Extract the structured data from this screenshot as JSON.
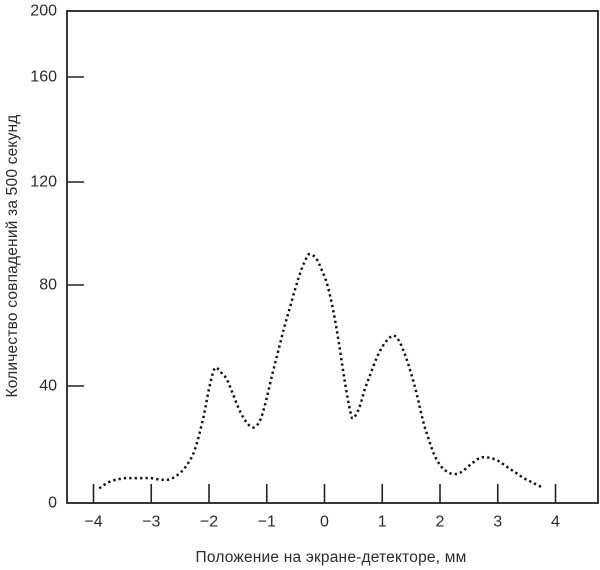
{
  "chart_data": {
    "type": "line",
    "line_style": "dotted",
    "title": "",
    "xlabel": "Положение на экране-детекторе, мм",
    "ylabel": "Количество совпадений за 500 секунд",
    "xlim": [
      -4.45,
      4.75
    ],
    "ylim": [
      0,
      200
    ],
    "grid": false,
    "legend_position": "none",
    "x_ticks": [
      -4,
      -3,
      -2,
      -1,
      0,
      1,
      2,
      3,
      4
    ],
    "x_tick_labels": [
      "−4",
      "−3",
      "−2",
      "−1",
      "0",
      "1",
      "2",
      "3",
      "4"
    ],
    "y_ticks": [
      0,
      40,
      80,
      120,
      160,
      200
    ],
    "y_tick_labels": [
      "0",
      "40",
      "80",
      "120",
      "160",
      "200"
    ],
    "colors": {
      "curve": "#111111",
      "axis": "#222222",
      "text": "#2b2b2b"
    },
    "series": [
      {
        "name": "coincidence counts per 500 s",
        "points": [
          [
            -3.9,
            5
          ],
          [
            -3.75,
            7
          ],
          [
            -3.6,
            8
          ],
          [
            -3.45,
            8.5
          ],
          [
            -3.3,
            8.5
          ],
          [
            -3.15,
            8.5
          ],
          [
            -3.0,
            8.5
          ],
          [
            -2.85,
            8
          ],
          [
            -2.7,
            8
          ],
          [
            -2.55,
            9.5
          ],
          [
            -2.4,
            12.5
          ],
          [
            -2.25,
            18
          ],
          [
            -2.1,
            29
          ],
          [
            -2.0,
            39
          ],
          [
            -1.9,
            47
          ],
          [
            -1.8,
            45.5
          ],
          [
            -1.7,
            43
          ],
          [
            -1.6,
            38
          ],
          [
            -1.5,
            33
          ],
          [
            -1.4,
            29
          ],
          [
            -1.3,
            26.5
          ],
          [
            -1.2,
            26
          ],
          [
            -1.1,
            29
          ],
          [
            -1.0,
            36
          ],
          [
            -0.9,
            45
          ],
          [
            -0.8,
            54
          ],
          [
            -0.7,
            63
          ],
          [
            -0.6,
            71
          ],
          [
            -0.5,
            79
          ],
          [
            -0.4,
            86
          ],
          [
            -0.3,
            91
          ],
          [
            -0.25,
            92
          ],
          [
            -0.15,
            90.5
          ],
          [
            -0.05,
            86
          ],
          [
            0.05,
            80
          ],
          [
            0.15,
            70
          ],
          [
            0.25,
            57
          ],
          [
            0.35,
            42
          ],
          [
            0.45,
            31
          ],
          [
            0.5,
            29
          ],
          [
            0.6,
            32.5
          ],
          [
            0.7,
            39
          ],
          [
            0.8,
            45
          ],
          [
            0.9,
            51
          ],
          [
            1.0,
            55.5
          ],
          [
            1.1,
            58.5
          ],
          [
            1.2,
            60
          ],
          [
            1.3,
            57.5
          ],
          [
            1.4,
            52
          ],
          [
            1.5,
            45
          ],
          [
            1.6,
            37
          ],
          [
            1.7,
            28.5
          ],
          [
            1.8,
            22
          ],
          [
            1.9,
            16.5
          ],
          [
            2.0,
            13
          ],
          [
            2.1,
            11
          ],
          [
            2.2,
            10
          ],
          [
            2.3,
            10
          ],
          [
            2.4,
            11
          ],
          [
            2.55,
            13.5
          ],
          [
            2.7,
            15.5
          ],
          [
            2.85,
            15.5
          ],
          [
            3.0,
            14.5
          ],
          [
            3.15,
            12.5
          ],
          [
            3.3,
            10.5
          ],
          [
            3.45,
            8.5
          ],
          [
            3.6,
            7
          ],
          [
            3.75,
            5.5
          ]
        ]
      }
    ]
  }
}
